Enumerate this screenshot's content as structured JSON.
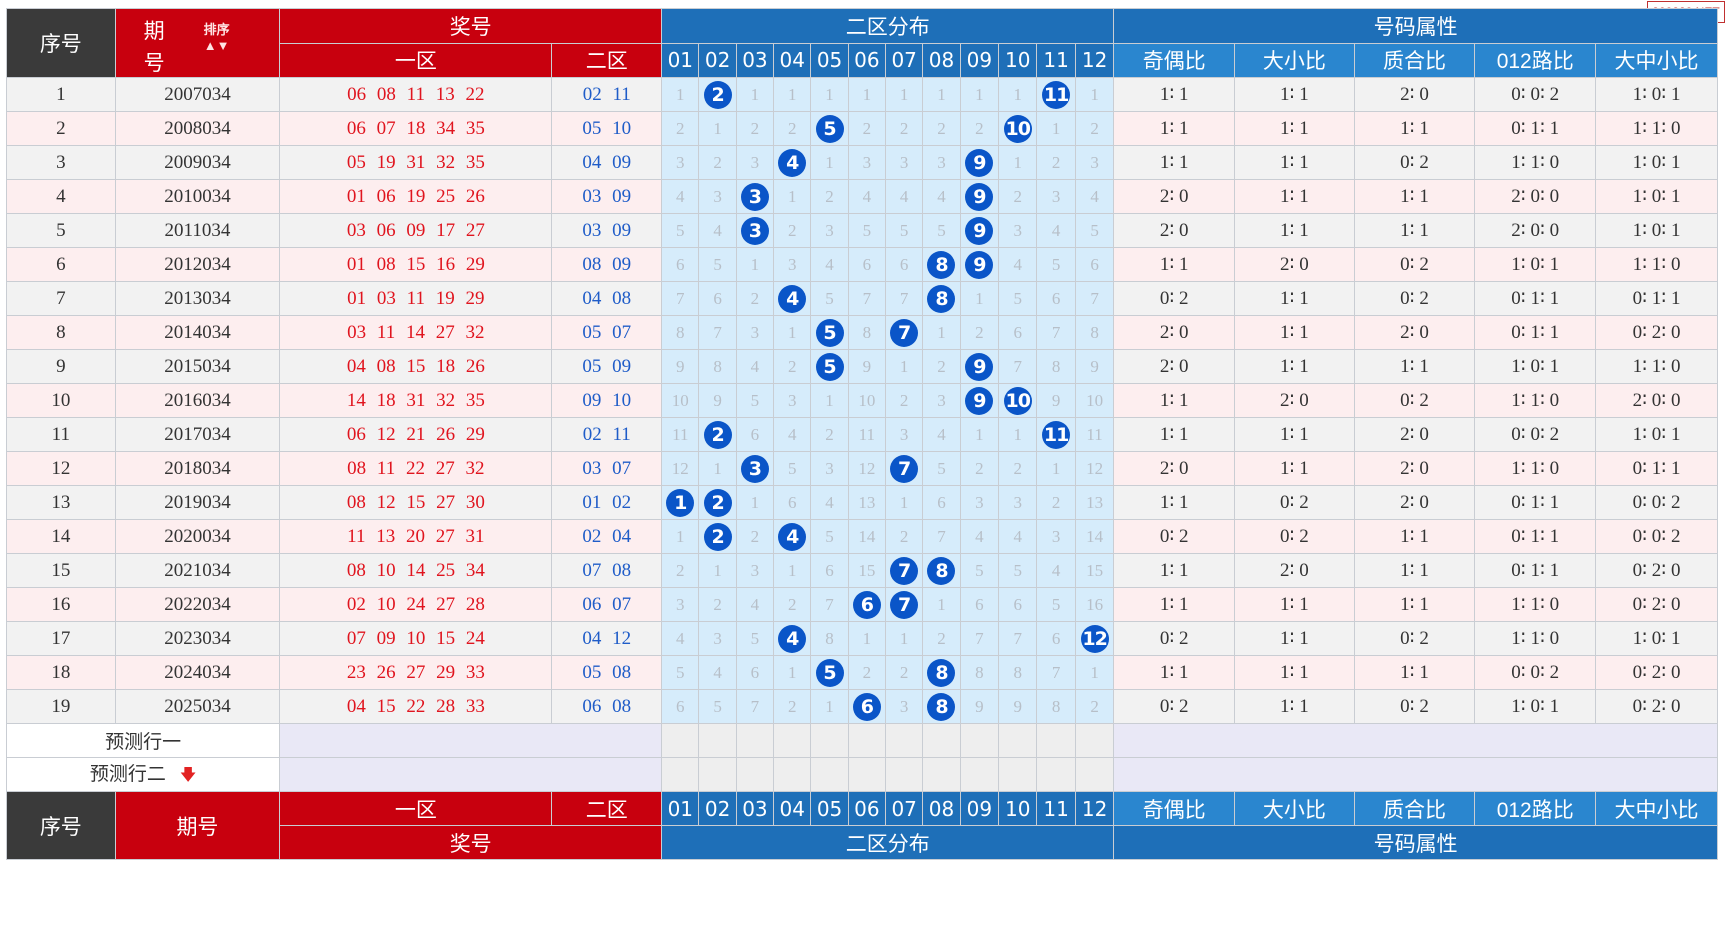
{
  "watermark": "800820.NET",
  "header": {
    "seq": "序号",
    "issue_top": "期",
    "issue_bottom": "号",
    "sort_label": "排序",
    "prize": "奖号",
    "zone1": "一区",
    "zone2": "二区",
    "dist": "二区分布",
    "attr": "号码属性",
    "nums": [
      "01",
      "02",
      "03",
      "04",
      "05",
      "06",
      "07",
      "08",
      "09",
      "10",
      "11",
      "12"
    ],
    "attrs": [
      "奇偶比",
      "大小比",
      "质合比",
      "012路比",
      "大中小比"
    ]
  },
  "footer": {
    "seq": "序号",
    "issue": "期号",
    "zone1": "一区",
    "zone2": "二区",
    "prize": "奖号",
    "dist": "二区分布",
    "attr": "号码属性"
  },
  "predict": {
    "row1": "预测行一",
    "row2": "预测行二",
    "arrow_icon": "down-arrow-icon"
  },
  "colors": {
    "ball": "#0a55c8",
    "red": "#c8000e",
    "blue": "#1e6fb8"
  },
  "rows": [
    {
      "seq": "1",
      "issue": "2007034",
      "zone1": "06 08 11 13 22",
      "zone2": "02 11",
      "dist": [
        "1",
        "2",
        "1",
        "1",
        "1",
        "1",
        "1",
        "1",
        "1",
        "1",
        "11",
        "1"
      ],
      "hits": [
        2,
        11
      ],
      "attrs": [
        "1∶ 1",
        "1∶ 1",
        "2∶ 0",
        "0∶ 0∶ 2",
        "1∶ 0∶ 1"
      ]
    },
    {
      "seq": "2",
      "issue": "2008034",
      "zone1": "06 07 18 34 35",
      "zone2": "05 10",
      "dist": [
        "2",
        "1",
        "2",
        "2",
        "5",
        "2",
        "2",
        "2",
        "2",
        "10",
        "1",
        "2"
      ],
      "hits": [
        5,
        10
      ],
      "attrs": [
        "1∶ 1",
        "1∶ 1",
        "1∶ 1",
        "0∶ 1∶ 1",
        "1∶ 1∶ 0"
      ]
    },
    {
      "seq": "3",
      "issue": "2009034",
      "zone1": "05 19 31 32 35",
      "zone2": "04 09",
      "dist": [
        "3",
        "2",
        "3",
        "4",
        "1",
        "3",
        "3",
        "3",
        "9",
        "1",
        "2",
        "3"
      ],
      "hits": [
        4,
        9
      ],
      "attrs": [
        "1∶ 1",
        "1∶ 1",
        "0∶ 2",
        "1∶ 1∶ 0",
        "1∶ 0∶ 1"
      ]
    },
    {
      "seq": "4",
      "issue": "2010034",
      "zone1": "01 06 19 25 26",
      "zone2": "03 09",
      "dist": [
        "4",
        "3",
        "3",
        "1",
        "2",
        "4",
        "4",
        "4",
        "9",
        "2",
        "3",
        "4"
      ],
      "hits": [
        3,
        9
      ],
      "attrs": [
        "2∶ 0",
        "1∶ 1",
        "1∶ 1",
        "2∶ 0∶ 0",
        "1∶ 0∶ 1"
      ]
    },
    {
      "seq": "5",
      "issue": "2011034",
      "zone1": "03 06 09 17 27",
      "zone2": "03 09",
      "dist": [
        "5",
        "4",
        "3",
        "2",
        "3",
        "5",
        "5",
        "5",
        "9",
        "3",
        "4",
        "5"
      ],
      "hits": [
        3,
        9
      ],
      "attrs": [
        "2∶ 0",
        "1∶ 1",
        "1∶ 1",
        "2∶ 0∶ 0",
        "1∶ 0∶ 1"
      ]
    },
    {
      "seq": "6",
      "issue": "2012034",
      "zone1": "01 08 15 16 29",
      "zone2": "08 09",
      "dist": [
        "6",
        "5",
        "1",
        "3",
        "4",
        "6",
        "6",
        "8",
        "9",
        "4",
        "5",
        "6"
      ],
      "hits": [
        8,
        9
      ],
      "attrs": [
        "1∶ 1",
        "2∶ 0",
        "0∶ 2",
        "1∶ 0∶ 1",
        "1∶ 1∶ 0"
      ]
    },
    {
      "seq": "7",
      "issue": "2013034",
      "zone1": "01 03 11 19 29",
      "zone2": "04 08",
      "dist": [
        "7",
        "6",
        "2",
        "4",
        "5",
        "7",
        "7",
        "8",
        "1",
        "5",
        "6",
        "7"
      ],
      "hits": [
        4,
        8
      ],
      "attrs": [
        "0∶ 2",
        "1∶ 1",
        "0∶ 2",
        "0∶ 1∶ 1",
        "0∶ 1∶ 1"
      ],
      "sep": true
    },
    {
      "seq": "8",
      "issue": "2014034",
      "zone1": "03 11 14 27 32",
      "zone2": "05 07",
      "dist": [
        "8",
        "7",
        "3",
        "1",
        "5",
        "8",
        "7",
        "1",
        "2",
        "6",
        "7",
        "8"
      ],
      "hits": [
        5,
        7
      ],
      "attrs": [
        "2∶ 0",
        "1∶ 1",
        "2∶ 0",
        "0∶ 1∶ 1",
        "0∶ 2∶ 0"
      ]
    },
    {
      "seq": "9",
      "issue": "2015034",
      "zone1": "04 08 15 18 26",
      "zone2": "05 09",
      "dist": [
        "9",
        "8",
        "4",
        "2",
        "5",
        "9",
        "1",
        "2",
        "9",
        "7",
        "8",
        "9"
      ],
      "hits": [
        5,
        9
      ],
      "attrs": [
        "2∶ 0",
        "1∶ 1",
        "1∶ 1",
        "1∶ 0∶ 1",
        "1∶ 1∶ 0"
      ]
    },
    {
      "seq": "10",
      "issue": "2016034",
      "zone1": "14 18 31 32 35",
      "zone2": "09 10",
      "dist": [
        "10",
        "9",
        "5",
        "3",
        "1",
        "10",
        "2",
        "3",
        "9",
        "10",
        "9",
        "10"
      ],
      "hits": [
        9,
        10
      ],
      "attrs": [
        "1∶ 1",
        "2∶ 0",
        "0∶ 2",
        "1∶ 1∶ 0",
        "2∶ 0∶ 0"
      ]
    },
    {
      "seq": "11",
      "issue": "2017034",
      "zone1": "06 12 21 26 29",
      "zone2": "02 11",
      "dist": [
        "11",
        "2",
        "6",
        "4",
        "2",
        "11",
        "3",
        "4",
        "1",
        "1",
        "11",
        "11"
      ],
      "hits": [
        2,
        11
      ],
      "attrs": [
        "1∶ 1",
        "1∶ 1",
        "2∶ 0",
        "0∶ 0∶ 2",
        "1∶ 0∶ 1"
      ]
    },
    {
      "seq": "12",
      "issue": "2018034",
      "zone1": "08 11 22 27 32",
      "zone2": "03 07",
      "dist": [
        "12",
        "1",
        "3",
        "5",
        "3",
        "12",
        "7",
        "5",
        "2",
        "2",
        "1",
        "12"
      ],
      "hits": [
        3,
        7
      ],
      "attrs": [
        "2∶ 0",
        "1∶ 1",
        "2∶ 0",
        "1∶ 1∶ 0",
        "0∶ 1∶ 1"
      ]
    },
    {
      "seq": "13",
      "issue": "2019034",
      "zone1": "08 12 15 27 30",
      "zone2": "01 02",
      "dist": [
        "1",
        "2",
        "1",
        "6",
        "4",
        "13",
        "1",
        "6",
        "3",
        "3",
        "2",
        "13"
      ],
      "hits": [
        1,
        2
      ],
      "attrs": [
        "1∶ 1",
        "0∶ 2",
        "2∶ 0",
        "0∶ 1∶ 1",
        "0∶ 0∶ 2"
      ],
      "sep": true
    },
    {
      "seq": "14",
      "issue": "2020034",
      "zone1": "11 13 20 27 31",
      "zone2": "02 04",
      "dist": [
        "1",
        "2",
        "2",
        "4",
        "5",
        "14",
        "2",
        "7",
        "4",
        "4",
        "3",
        "14"
      ],
      "hits": [
        2,
        4
      ],
      "attrs": [
        "0∶ 2",
        "0∶ 2",
        "1∶ 1",
        "0∶ 1∶ 1",
        "0∶ 0∶ 2"
      ]
    },
    {
      "seq": "15",
      "issue": "2021034",
      "zone1": "08 10 14 25 34",
      "zone2": "07 08",
      "dist": [
        "2",
        "1",
        "3",
        "1",
        "6",
        "15",
        "7",
        "8",
        "5",
        "5",
        "4",
        "15"
      ],
      "hits": [
        7,
        8
      ],
      "attrs": [
        "1∶ 1",
        "2∶ 0",
        "1∶ 1",
        "0∶ 1∶ 1",
        "0∶ 2∶ 0"
      ]
    },
    {
      "seq": "16",
      "issue": "2022034",
      "zone1": "02 10 24 27 28",
      "zone2": "06 07",
      "dist": [
        "3",
        "2",
        "4",
        "2",
        "7",
        "6",
        "7",
        "1",
        "6",
        "6",
        "5",
        "16"
      ],
      "hits": [
        6,
        7
      ],
      "attrs": [
        "1∶ 1",
        "1∶ 1",
        "1∶ 1",
        "1∶ 1∶ 0",
        "0∶ 2∶ 0"
      ]
    },
    {
      "seq": "17",
      "issue": "2023034",
      "zone1": "07 09 10 15 24",
      "zone2": "04 12",
      "dist": [
        "4",
        "3",
        "5",
        "4",
        "8",
        "1",
        "1",
        "2",
        "7",
        "7",
        "6",
        "12"
      ],
      "hits": [
        4,
        12
      ],
      "attrs": [
        "0∶ 2",
        "1∶ 1",
        "0∶ 2",
        "1∶ 1∶ 0",
        "1∶ 0∶ 1"
      ]
    },
    {
      "seq": "18",
      "issue": "2024034",
      "zone1": "23 26 27 29 33",
      "zone2": "05 08",
      "dist": [
        "5",
        "4",
        "6",
        "1",
        "5",
        "2",
        "2",
        "8",
        "8",
        "8",
        "7",
        "1"
      ],
      "hits": [
        5,
        8
      ],
      "attrs": [
        "1∶ 1",
        "1∶ 1",
        "1∶ 1",
        "0∶ 0∶ 2",
        "0∶ 2∶ 0"
      ]
    },
    {
      "seq": "19",
      "issue": "2025034",
      "zone1": "04 15 22 28 33",
      "zone2": "06 08",
      "dist": [
        "6",
        "5",
        "7",
        "2",
        "1",
        "6",
        "3",
        "8",
        "9",
        "9",
        "8",
        "2"
      ],
      "hits": [
        6,
        8
      ],
      "attrs": [
        "0∶ 2",
        "1∶ 1",
        "0∶ 2",
        "1∶ 0∶ 1",
        "0∶ 2∶ 0"
      ],
      "sep": true
    }
  ]
}
